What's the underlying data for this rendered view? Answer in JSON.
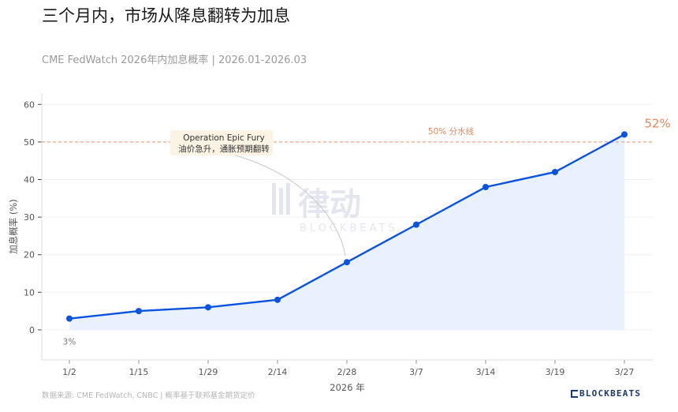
{
  "header": {
    "title": "三个月内，市场从降息翻转为加息",
    "subtitle": "CME FedWatch 2026年内加息概率 | 2026.01-2026.03"
  },
  "footer": {
    "source": "数据来源: CME FedWatch, CNBC | 概率基于联邦基金期货定价",
    "brand": "BLOCKBEATS"
  },
  "watermark": {
    "cn": "律动",
    "en": "BLOCKBEATS"
  },
  "colors": {
    "line": "#0a52e0",
    "fill": "#e6effd",
    "threshold": "#e8845a",
    "annotation_bg": "#fbf3e4"
  },
  "chart_data": {
    "type": "area",
    "x": [
      "1/2",
      "1/15",
      "1/29",
      "2/14",
      "2/28",
      "3/7",
      "3/14",
      "3/19",
      "3/27"
    ],
    "values": [
      3,
      5,
      6,
      8,
      18,
      28,
      38,
      42,
      52
    ],
    "xlabel": "2026 年",
    "ylabel": "加息概率 (%)",
    "ylim": [
      -8,
      63
    ],
    "yticks": [
      0,
      10,
      20,
      30,
      40,
      50,
      60
    ],
    "grid": true,
    "start_label": "3%",
    "end_label": "52%",
    "threshold": {
      "value": 50,
      "label": "50% 分水线"
    },
    "annotation": {
      "line1": "Operation Epic Fury",
      "line2": "油价急升，通胀预期翻转",
      "target": "2/28"
    }
  }
}
